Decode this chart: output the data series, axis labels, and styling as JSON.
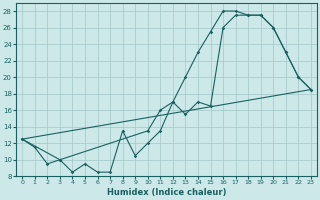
{
  "xlabel": "Humidex (Indice chaleur)",
  "bg_color": "#cce8e8",
  "grid_color": "#aacccc",
  "line_color": "#1a6060",
  "xlim": [
    -0.5,
    23.5
  ],
  "ylim": [
    8,
    29
  ],
  "yticks": [
    8,
    10,
    12,
    14,
    16,
    18,
    20,
    22,
    24,
    26,
    28
  ],
  "xticks": [
    0,
    1,
    2,
    3,
    4,
    5,
    6,
    7,
    8,
    9,
    10,
    11,
    12,
    13,
    14,
    15,
    16,
    17,
    18,
    19,
    20,
    21,
    22,
    23
  ],
  "line1_x": [
    0,
    1,
    2,
    3,
    4,
    5,
    6,
    7,
    8,
    9,
    10,
    11,
    12,
    13,
    14,
    15,
    16,
    17,
    18,
    19,
    20,
    21,
    22,
    23
  ],
  "line1_y": [
    12.5,
    11.5,
    9.5,
    10.0,
    8.5,
    9.5,
    8.5,
    8.5,
    13.5,
    10.5,
    12.0,
    13.5,
    17.0,
    20.0,
    23.0,
    25.5,
    28.0,
    28.0,
    27.5,
    27.5,
    26.0,
    23.0,
    20.0,
    18.5
  ],
  "line2_x": [
    0,
    3,
    10,
    11,
    12,
    13,
    14,
    15,
    16,
    17,
    18,
    19,
    20,
    21,
    22,
    23
  ],
  "line2_y": [
    12.5,
    10.0,
    13.5,
    16.0,
    17.0,
    15.5,
    17.0,
    16.5,
    26.0,
    27.5,
    27.5,
    27.5,
    26.0,
    23.0,
    20.0,
    18.5
  ],
  "line3_x": [
    0,
    23
  ],
  "line3_y": [
    12.5,
    18.5
  ]
}
